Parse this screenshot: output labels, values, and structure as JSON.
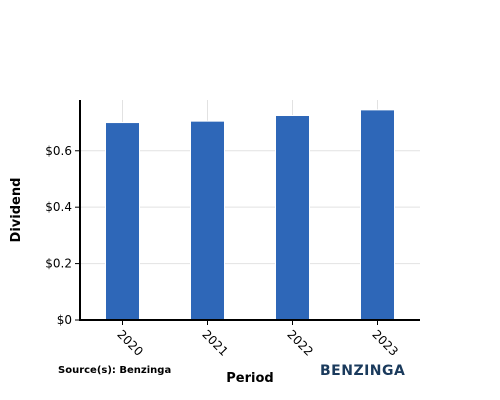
{
  "chart_data": {
    "type": "bar",
    "categories": [
      "2020",
      "2021",
      "2022",
      "2023"
    ],
    "values": [
      0.7,
      0.705,
      0.725,
      0.745
    ],
    "xlabel": "Period",
    "ylabel": "Dividend",
    "ylim": [
      0,
      0.78
    ],
    "yticks": [
      0,
      0.2,
      0.4,
      0.6
    ],
    "ytick_labels": [
      "$0",
      "$0.2",
      "$0.4",
      "$0.6"
    ],
    "grid": true,
    "bar_color": "#2e67b8",
    "source": "Source(s): Benzinga",
    "logo_text": "BENZINGA"
  }
}
